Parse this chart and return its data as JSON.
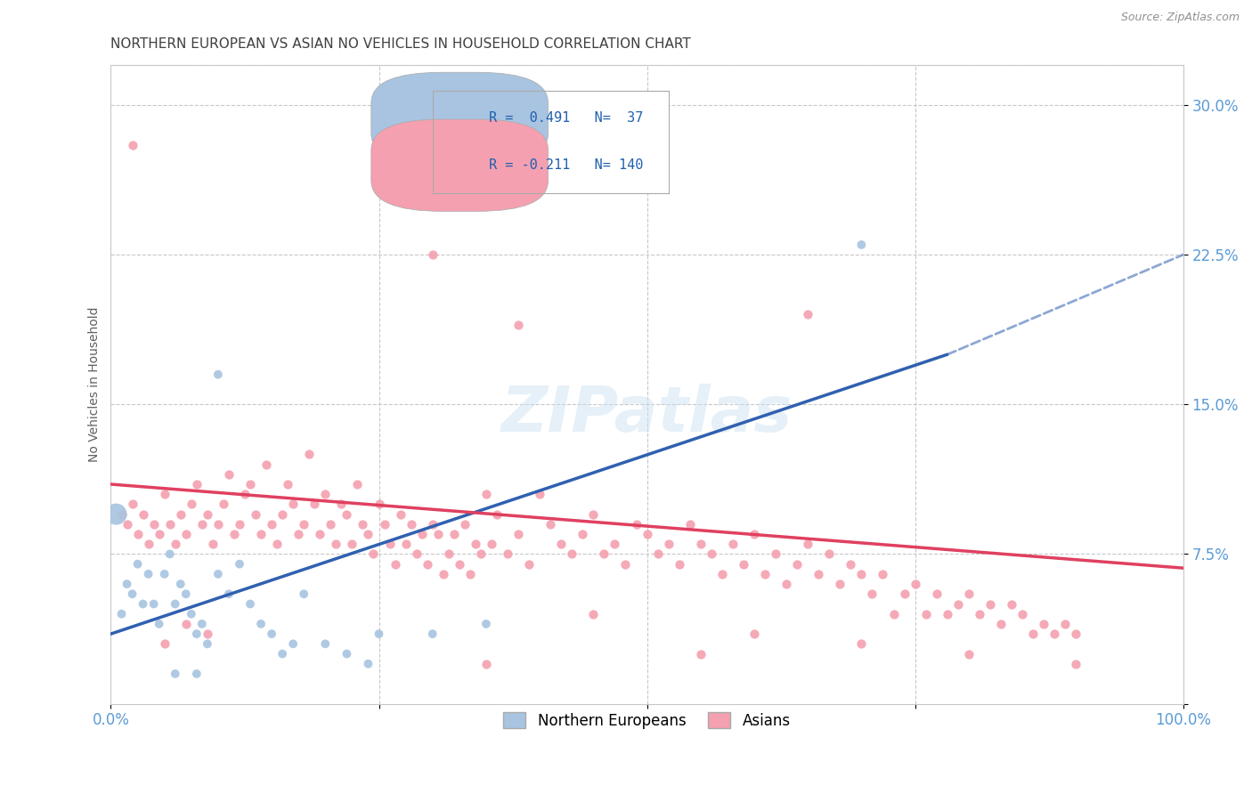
{
  "title": "NORTHERN EUROPEAN VS ASIAN NO VEHICLES IN HOUSEHOLD CORRELATION CHART",
  "source": "Source: ZipAtlas.com",
  "ylabel": "No Vehicles in Household",
  "xlim": [
    0,
    100
  ],
  "ylim": [
    0,
    32
  ],
  "xticks": [
    0,
    25,
    50,
    75,
    100
  ],
  "xticklabels": [
    "0.0%",
    "",
    "",
    "",
    "100.0%"
  ],
  "yticks": [
    0,
    7.5,
    15.0,
    22.5,
    30.0
  ],
  "yticklabels": [
    "",
    "7.5%",
    "15.0%",
    "22.5%",
    "30.0%"
  ],
  "blue_R": 0.491,
  "blue_N": 37,
  "pink_R": -0.211,
  "pink_N": 140,
  "blue_color": "#a8c4e0",
  "pink_color": "#f4a0b0",
  "blue_line_color": "#3060b0",
  "pink_line_color": "#e04060",
  "watermark": "ZIPatlas",
  "legend_label_blue": "Northern Europeans",
  "legend_label_pink": "Asians",
  "blue_scatter": [
    [
      0.5,
      9.5
    ],
    [
      1.0,
      4.5
    ],
    [
      1.5,
      6.0
    ],
    [
      2.0,
      5.5
    ],
    [
      2.5,
      7.0
    ],
    [
      3.0,
      5.0
    ],
    [
      3.5,
      6.5
    ],
    [
      4.0,
      5.0
    ],
    [
      4.5,
      4.0
    ],
    [
      5.0,
      6.5
    ],
    [
      5.5,
      7.5
    ],
    [
      6.0,
      5.0
    ],
    [
      6.5,
      6.0
    ],
    [
      7.0,
      5.5
    ],
    [
      7.5,
      4.5
    ],
    [
      8.0,
      3.5
    ],
    [
      8.5,
      4.0
    ],
    [
      9.0,
      3.0
    ],
    [
      10.0,
      6.5
    ],
    [
      11.0,
      5.5
    ],
    [
      12.0,
      7.0
    ],
    [
      13.0,
      5.0
    ],
    [
      14.0,
      4.0
    ],
    [
      15.0,
      3.5
    ],
    [
      16.0,
      2.5
    ],
    [
      17.0,
      3.0
    ],
    [
      18.0,
      5.5
    ],
    [
      20.0,
      3.0
    ],
    [
      22.0,
      2.5
    ],
    [
      24.0,
      2.0
    ],
    [
      25.0,
      3.5
    ],
    [
      30.0,
      3.5
    ],
    [
      35.0,
      4.0
    ],
    [
      10.0,
      16.5
    ],
    [
      70.0,
      23.0
    ],
    [
      6.0,
      1.5
    ],
    [
      8.0,
      1.5
    ]
  ],
  "blue_scatter_sizes": [
    300,
    50,
    50,
    50,
    50,
    50,
    50,
    50,
    50,
    50,
    50,
    50,
    50,
    50,
    50,
    50,
    50,
    50,
    50,
    50,
    50,
    50,
    50,
    50,
    50,
    50,
    50,
    50,
    50,
    50,
    50,
    50,
    50,
    50,
    50,
    50,
    50
  ],
  "pink_scatter": [
    [
      1.0,
      9.5
    ],
    [
      1.5,
      9.0
    ],
    [
      2.0,
      10.0
    ],
    [
      2.5,
      8.5
    ],
    [
      3.0,
      9.5
    ],
    [
      3.5,
      8.0
    ],
    [
      4.0,
      9.0
    ],
    [
      4.5,
      8.5
    ],
    [
      5.0,
      10.5
    ],
    [
      5.5,
      9.0
    ],
    [
      6.0,
      8.0
    ],
    [
      6.5,
      9.5
    ],
    [
      7.0,
      8.5
    ],
    [
      7.5,
      10.0
    ],
    [
      8.0,
      11.0
    ],
    [
      8.5,
      9.0
    ],
    [
      9.0,
      9.5
    ],
    [
      9.5,
      8.0
    ],
    [
      10.0,
      9.0
    ],
    [
      10.5,
      10.0
    ],
    [
      11.0,
      11.5
    ],
    [
      11.5,
      8.5
    ],
    [
      12.0,
      9.0
    ],
    [
      12.5,
      10.5
    ],
    [
      13.0,
      11.0
    ],
    [
      13.5,
      9.5
    ],
    [
      14.0,
      8.5
    ],
    [
      14.5,
      12.0
    ],
    [
      15.0,
      9.0
    ],
    [
      15.5,
      8.0
    ],
    [
      16.0,
      9.5
    ],
    [
      16.5,
      11.0
    ],
    [
      17.0,
      10.0
    ],
    [
      17.5,
      8.5
    ],
    [
      18.0,
      9.0
    ],
    [
      18.5,
      12.5
    ],
    [
      19.0,
      10.0
    ],
    [
      19.5,
      8.5
    ],
    [
      20.0,
      10.5
    ],
    [
      20.5,
      9.0
    ],
    [
      21.0,
      8.0
    ],
    [
      21.5,
      10.0
    ],
    [
      22.0,
      9.5
    ],
    [
      22.5,
      8.0
    ],
    [
      23.0,
      11.0
    ],
    [
      23.5,
      9.0
    ],
    [
      24.0,
      8.5
    ],
    [
      24.5,
      7.5
    ],
    [
      25.0,
      10.0
    ],
    [
      25.5,
      9.0
    ],
    [
      26.0,
      8.0
    ],
    [
      26.5,
      7.0
    ],
    [
      27.0,
      9.5
    ],
    [
      27.5,
      8.0
    ],
    [
      28.0,
      9.0
    ],
    [
      28.5,
      7.5
    ],
    [
      29.0,
      8.5
    ],
    [
      29.5,
      7.0
    ],
    [
      30.0,
      9.0
    ],
    [
      30.5,
      8.5
    ],
    [
      31.0,
      6.5
    ],
    [
      31.5,
      7.5
    ],
    [
      32.0,
      8.5
    ],
    [
      32.5,
      7.0
    ],
    [
      33.0,
      9.0
    ],
    [
      33.5,
      6.5
    ],
    [
      34.0,
      8.0
    ],
    [
      34.5,
      7.5
    ],
    [
      35.0,
      10.5
    ],
    [
      35.5,
      8.0
    ],
    [
      36.0,
      9.5
    ],
    [
      37.0,
      7.5
    ],
    [
      38.0,
      8.5
    ],
    [
      39.0,
      7.0
    ],
    [
      40.0,
      10.5
    ],
    [
      41.0,
      9.0
    ],
    [
      42.0,
      8.0
    ],
    [
      43.0,
      7.5
    ],
    [
      44.0,
      8.5
    ],
    [
      45.0,
      9.5
    ],
    [
      46.0,
      7.5
    ],
    [
      47.0,
      8.0
    ],
    [
      48.0,
      7.0
    ],
    [
      49.0,
      9.0
    ],
    [
      50.0,
      8.5
    ],
    [
      51.0,
      7.5
    ],
    [
      52.0,
      8.0
    ],
    [
      53.0,
      7.0
    ],
    [
      54.0,
      9.0
    ],
    [
      55.0,
      8.0
    ],
    [
      56.0,
      7.5
    ],
    [
      57.0,
      6.5
    ],
    [
      58.0,
      8.0
    ],
    [
      59.0,
      7.0
    ],
    [
      60.0,
      8.5
    ],
    [
      61.0,
      6.5
    ],
    [
      62.0,
      7.5
    ],
    [
      63.0,
      6.0
    ],
    [
      64.0,
      7.0
    ],
    [
      65.0,
      8.0
    ],
    [
      66.0,
      6.5
    ],
    [
      67.0,
      7.5
    ],
    [
      68.0,
      6.0
    ],
    [
      69.0,
      7.0
    ],
    [
      70.0,
      6.5
    ],
    [
      71.0,
      5.5
    ],
    [
      72.0,
      6.5
    ],
    [
      73.0,
      4.5
    ],
    [
      74.0,
      5.5
    ],
    [
      75.0,
      6.0
    ],
    [
      76.0,
      4.5
    ],
    [
      77.0,
      5.5
    ],
    [
      78.0,
      4.5
    ],
    [
      79.0,
      5.0
    ],
    [
      80.0,
      5.5
    ],
    [
      81.0,
      4.5
    ],
    [
      82.0,
      5.0
    ],
    [
      83.0,
      4.0
    ],
    [
      84.0,
      5.0
    ],
    [
      85.0,
      4.5
    ],
    [
      86.0,
      3.5
    ],
    [
      87.0,
      4.0
    ],
    [
      88.0,
      3.5
    ],
    [
      89.0,
      4.0
    ],
    [
      90.0,
      3.5
    ],
    [
      2.0,
      28.0
    ],
    [
      26.0,
      26.5
    ],
    [
      30.0,
      22.5
    ],
    [
      38.0,
      19.0
    ],
    [
      65.0,
      19.5
    ],
    [
      5.0,
      3.0
    ],
    [
      7.0,
      4.0
    ],
    [
      9.0,
      3.5
    ],
    [
      45.0,
      4.5
    ],
    [
      60.0,
      3.5
    ],
    [
      70.0,
      3.0
    ],
    [
      80.0,
      2.5
    ],
    [
      90.0,
      2.0
    ],
    [
      55.0,
      2.5
    ],
    [
      35.0,
      2.0
    ]
  ],
  "blue_line": {
    "x0": 0,
    "x1": 78,
    "y0": 3.5,
    "y1": 17.5
  },
  "pink_line": {
    "x0": 0,
    "x1": 100,
    "y0": 11.0,
    "y1": 6.8
  },
  "blue_dash_line": {
    "x0": 78,
    "x1": 100,
    "y0": 17.5,
    "y1": 22.5
  },
  "grid_color": "#c8c8c8",
  "tick_color": "#5b9bd5",
  "title_color": "#404040",
  "ylabel_color": "#606060",
  "source_color": "#909090"
}
